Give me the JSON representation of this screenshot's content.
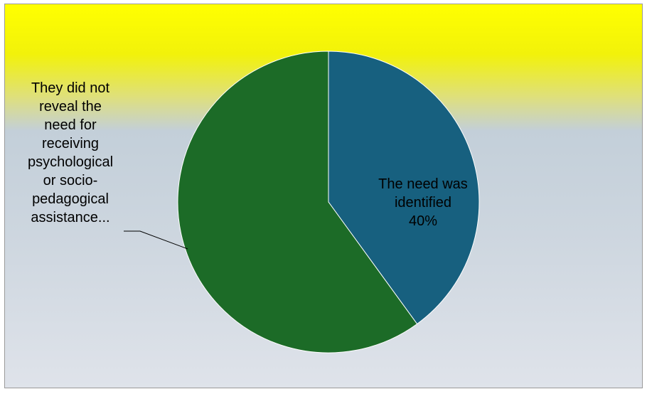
{
  "chart_data": {
    "type": "pie",
    "title": "",
    "slices": [
      {
        "label": "The need was identified",
        "value": 40,
        "display": "The need was\nidentified\n40%",
        "color": "#17607f"
      },
      {
        "label": "They did not reveal the need for receiving psychological or socio-pedagogical assistance...",
        "value": 60,
        "display": "They did not\nreveal the\nneed for\nreceiving\npsychological\nor socio-\npedagogical\nassistance...",
        "color": "#1c6b27"
      }
    ],
    "start_angle_deg": 0,
    "direction": "clockwise",
    "legend": "none",
    "background": [
      "#ffff00",
      "#c3cfd9",
      "#dfe3ea"
    ]
  }
}
